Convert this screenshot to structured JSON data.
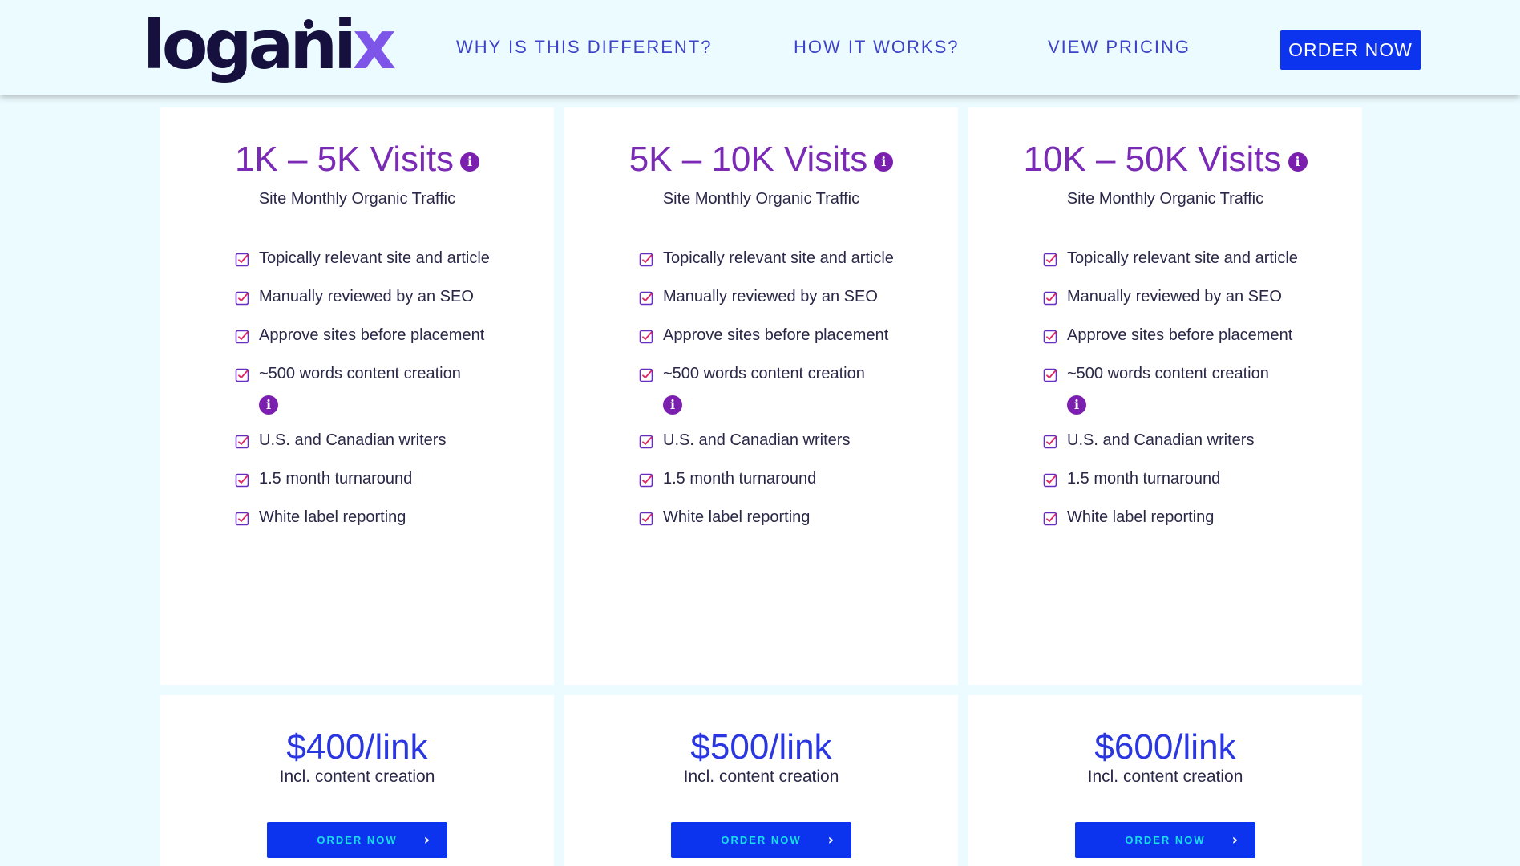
{
  "header": {
    "logo_main": "logani",
    "logo_x": "x",
    "nav": [
      "WHY IS THIS DIFFERENT?",
      "HOW IT WORKS?",
      "VIEW PRICING"
    ],
    "order_label": "ORDER NOW"
  },
  "plans": [
    {
      "title": "1K – 5K Visits",
      "subtitle": "Site Monthly Organic Traffic",
      "features": [
        "Topically relevant site and article",
        "Manually reviewed by an SEO",
        "Approve sites before placement",
        "~500 words content creation",
        "U.S. and Canadian writers",
        "1.5 month turnaround",
        "White label reporting"
      ],
      "price": "$400/link",
      "price_note": "Incl. content creation",
      "button": "ORDER NOW"
    },
    {
      "title": "5K – 10K Visits",
      "subtitle": "Site Monthly Organic Traffic",
      "features": [
        "Topically relevant site and article",
        "Manually reviewed by an SEO",
        "Approve sites before placement",
        "~500 words content creation",
        "U.S. and Canadian writers",
        "1.5 month turnaround",
        "White label reporting"
      ],
      "price": "$500/link",
      "price_note": "Incl. content creation",
      "button": "ORDER NOW"
    },
    {
      "title": "10K – 50K Visits",
      "subtitle": "Site Monthly Organic Traffic",
      "features": [
        "Topically relevant site and article",
        "Manually reviewed by an SEO",
        "Approve sites before placement",
        "~500 words content creation",
        "U.S. and Canadian writers",
        "1.5 month turnaround",
        "White label reporting"
      ],
      "price": "$600/link",
      "price_note": "Incl. content creation",
      "button": "ORDER NOW"
    }
  ],
  "icons": {
    "info": "i",
    "arrow": "›"
  },
  "colors": {
    "background": "#ecfbff",
    "brand_blue": "#0c33ee",
    "title_purple": "#7a2ab5",
    "price_blue": "#2a37e0",
    "logo_navy": "#16103f"
  }
}
